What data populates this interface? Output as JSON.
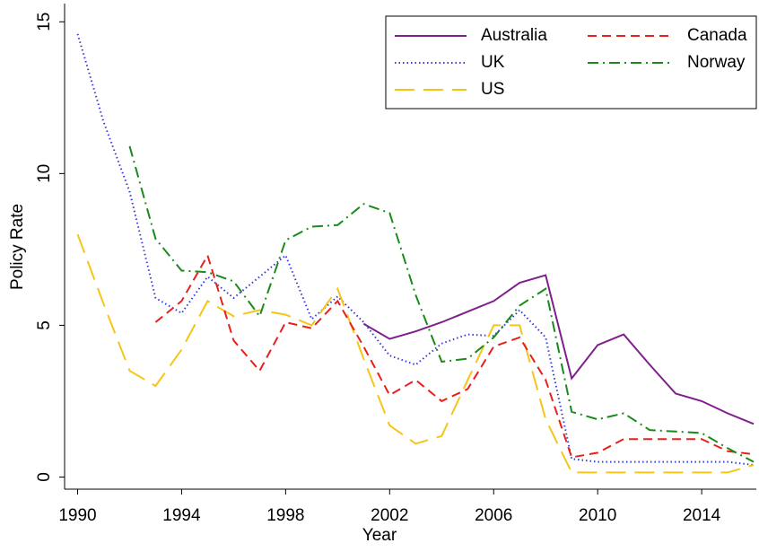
{
  "chart_data": {
    "type": "line",
    "xlabel": "Year",
    "ylabel": "Policy Rate",
    "x": [
      1990,
      1991,
      1992,
      1993,
      1994,
      1995,
      1996,
      1997,
      1998,
      1999,
      2000,
      2001,
      2002,
      2003,
      2004,
      2005,
      2006,
      2007,
      2008,
      2009,
      2010,
      2011,
      2012,
      2013,
      2014,
      2015,
      2016
    ],
    "series": [
      {
        "name": "Australia",
        "color": "#7f1f8c",
        "dash": "solid",
        "values": [
          null,
          null,
          null,
          null,
          null,
          null,
          null,
          null,
          null,
          null,
          null,
          5.05,
          4.55,
          4.8,
          5.1,
          5.45,
          5.8,
          6.4,
          6.65,
          3.25,
          4.35,
          4.7,
          3.7,
          2.75,
          2.5,
          2.1,
          1.75
        ]
      },
      {
        "name": "UK",
        "color": "#3a3ad6",
        "dash": "dot",
        "values": [
          14.6,
          11.7,
          9.4,
          5.9,
          5.4,
          6.6,
          5.9,
          6.6,
          7.3,
          5.2,
          5.95,
          5.1,
          4.0,
          3.7,
          4.4,
          4.7,
          4.65,
          5.5,
          4.6,
          0.6,
          0.5,
          0.5,
          0.5,
          0.5,
          0.5,
          0.5,
          0.4
        ]
      },
      {
        "name": "US",
        "color": "#f5c518",
        "dash": "longdash",
        "values": [
          8.0,
          5.7,
          3.5,
          3.0,
          4.2,
          5.8,
          5.3,
          5.5,
          5.35,
          5.0,
          6.2,
          3.9,
          1.7,
          1.1,
          1.35,
          3.2,
          5.0,
          5.0,
          1.9,
          0.15,
          0.15,
          0.15,
          0.15,
          0.15,
          0.15,
          0.15,
          0.4
        ]
      },
      {
        "name": "Canada",
        "color": "#e8201c",
        "dash": "dash",
        "values": [
          null,
          null,
          null,
          5.1,
          5.8,
          7.3,
          4.5,
          3.5,
          5.1,
          4.9,
          5.8,
          4.3,
          2.7,
          3.2,
          2.5,
          2.9,
          4.3,
          4.6,
          3.2,
          0.65,
          0.8,
          1.25,
          1.25,
          1.25,
          1.25,
          0.85,
          0.75
        ]
      },
      {
        "name": "Norway",
        "color": "#1a8a1a",
        "dash": "dashdot",
        "values": [
          null,
          null,
          10.9,
          7.85,
          6.8,
          6.75,
          6.45,
          5.3,
          7.8,
          8.25,
          8.3,
          9.0,
          8.7,
          6.0,
          3.8,
          3.9,
          4.6,
          5.65,
          6.2,
          2.15,
          1.9,
          2.1,
          1.55,
          1.5,
          1.45,
          0.95,
          0.5
        ]
      }
    ],
    "xlim": [
      1989.5,
      2016.1
    ],
    "xticks": [
      1990,
      1994,
      1998,
      2002,
      2006,
      2010,
      2014
    ],
    "ylim": [
      -0.4,
      15.6
    ],
    "yticks": [
      0,
      5,
      10,
      15
    ],
    "grid": false,
    "legend": "top-right"
  }
}
